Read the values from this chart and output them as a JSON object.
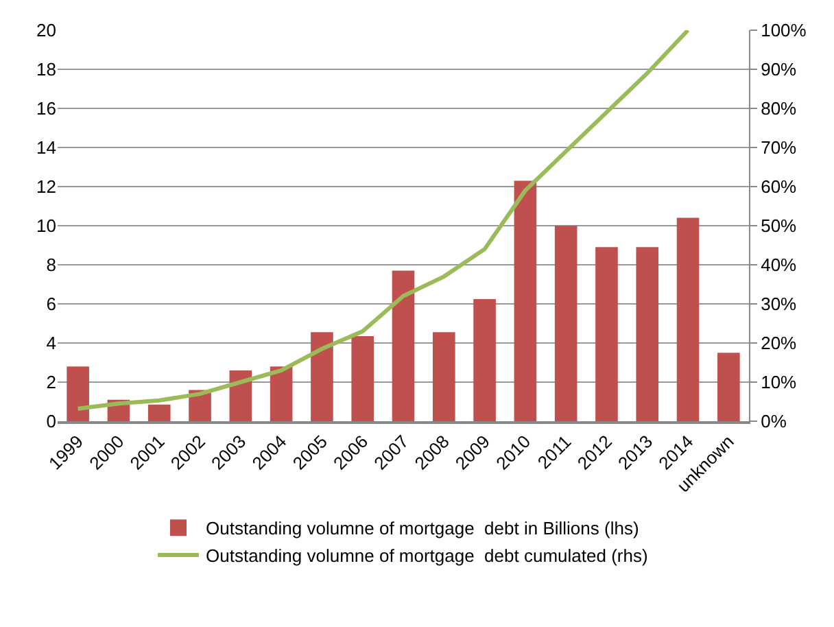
{
  "chart_data": {
    "type": "bar",
    "categories": [
      "1999",
      "2000",
      "2001",
      "2002",
      "2003",
      "2004",
      "2005",
      "2006",
      "2007",
      "2008",
      "2009",
      "2010",
      "2011",
      "2012",
      "2013",
      "2014",
      "unknown"
    ],
    "series": [
      {
        "name": "Outstanding volumne of mortgage  debt in Billions (lhs)",
        "color": "#c0504d",
        "values": [
          2.8,
          1.1,
          0.85,
          1.6,
          2.6,
          2.8,
          4.55,
          4.35,
          7.7,
          4.55,
          6.25,
          12.3,
          10,
          8.9,
          8.9,
          10.4,
          3.5
        ]
      },
      {
        "name": "Outstanding volumne of mortgage  debt cumulated (rhs)",
        "type": "line",
        "axis": "y2",
        "color": "#9bbb59",
        "values": [
          3.2,
          4.5,
          5.3,
          7,
          10,
          13,
          18.5,
          23,
          32,
          37,
          44,
          59,
          69,
          79,
          89,
          100,
          null
        ]
      }
    ],
    "ylim": [
      0,
      20
    ],
    "yticks": [
      0,
      2,
      4,
      6,
      8,
      10,
      12,
      14,
      16,
      18,
      20
    ],
    "y2lim": [
      0,
      100
    ],
    "y2ticks": [
      {
        "value": 0,
        "label": "0%"
      },
      {
        "value": 10,
        "label": "10%"
      },
      {
        "value": 20,
        "label": "20%"
      },
      {
        "value": 30,
        "label": "30%"
      },
      {
        "value": 40,
        "label": "40%"
      },
      {
        "value": 50,
        "label": "50%"
      },
      {
        "value": 60,
        "label": "60%"
      },
      {
        "value": 70,
        "label": "70%"
      },
      {
        "value": 80,
        "label": "80%"
      },
      {
        "value": 90,
        "label": "90%"
      },
      {
        "value": 100,
        "label": "100%"
      }
    ],
    "grid": "y",
    "legend": "bottom",
    "marker": "none",
    "line_style": "solid"
  }
}
